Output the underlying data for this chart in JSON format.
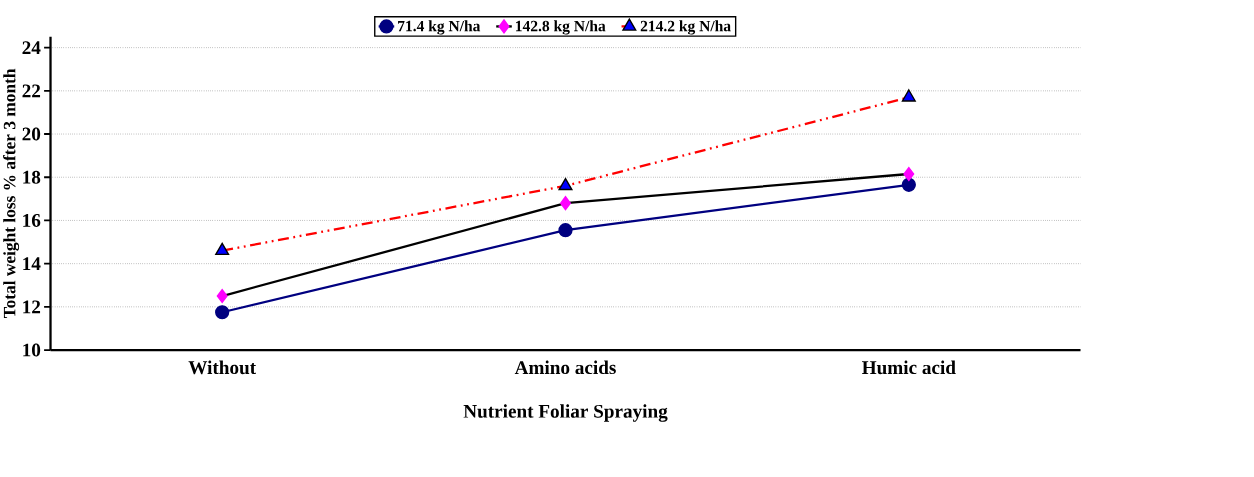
{
  "chart_data": {
    "type": "line",
    "xlabel": "Nutrient Foliar Spraying",
    "ylabel": "Total weight loss % after 3 month",
    "categories": [
      "Without",
      "Amino acids",
      "Humic acid"
    ],
    "series": [
      {
        "name": "71.4 kg N/ha",
        "color": "#000080",
        "marker": "circle",
        "line_style": "solid",
        "values": [
          11.75,
          15.55,
          17.65
        ]
      },
      {
        "name": "142.8 kg N/ha",
        "color": "#000000",
        "marker": "diamond",
        "line_style": "solid",
        "values": [
          12.5,
          16.8,
          18.15
        ]
      },
      {
        "name": "214.2 kg N/ha",
        "color": "#ff0000",
        "marker": "triangle",
        "line_style": "dashed",
        "values": [
          14.6,
          17.6,
          21.7
        ]
      }
    ],
    "ylim": [
      10,
      24.5
    ],
    "yticks": [
      10,
      12,
      14,
      16,
      18,
      20,
      22,
      24
    ],
    "grid": "y",
    "legend": "top"
  }
}
